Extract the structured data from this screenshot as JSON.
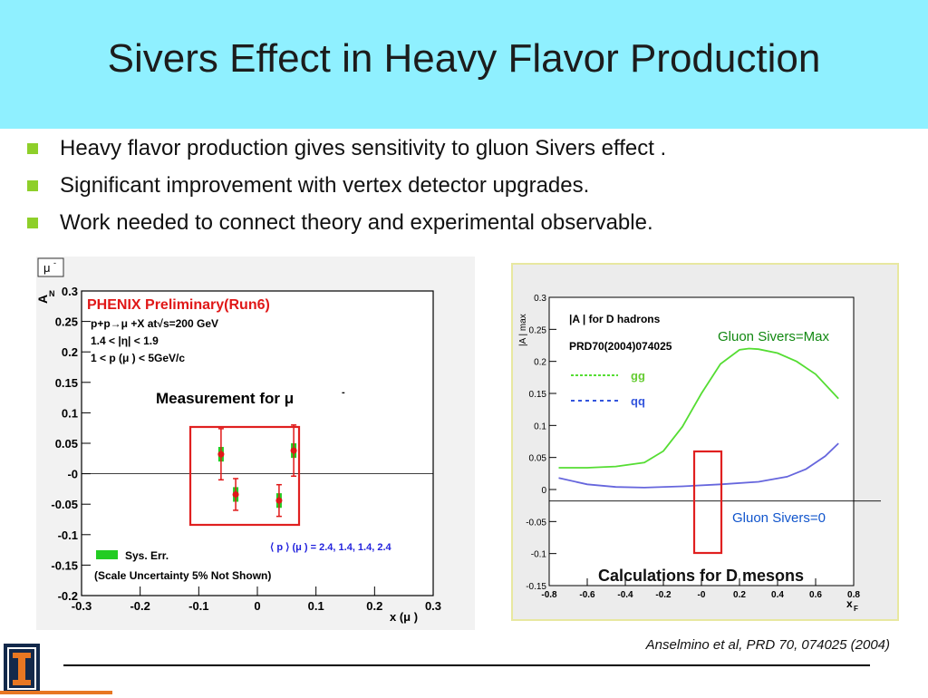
{
  "slide": {
    "title": "Sivers Effect in Heavy Flavor Production",
    "bullets": [
      "Heavy flavor production gives sensitivity to gluon Sivers effect .",
      "Significant improvement with vertex detector upgrades.",
      " Work needed to connect theory and experimental observable."
    ],
    "citation": "Anselmino et al, PRD 70, 074025 (2004)",
    "logo_text": "ILLINOIS",
    "colors": {
      "header": "#8ff0ff",
      "bullet": "#8ecf2a",
      "highlight_box": "#e02020"
    }
  },
  "chart_data": [
    {
      "type": "scatter",
      "panel_label": "μ",
      "panel_label_sup": "-",
      "title": "PHENIX Preliminary(Run6)",
      "info": [
        "p+p→μ +X at√s=200 GeV",
        "1.4 < |η| < 1.9",
        "1 < p (μ ) < 5GeV/c"
      ],
      "xlabel": "x (μ )",
      "ylabel": "A",
      "ylabel_sub": "N",
      "xlim": [
        -0.3,
        0.3
      ],
      "ylim": [
        -0.2,
        0.3
      ],
      "x_ticks": [
        "-0.3",
        "-0.2",
        "-0.1",
        "0",
        "0.1",
        "0.2",
        "0.3"
      ],
      "y_ticks": [
        "0.3",
        "0.25",
        "0.2",
        "0.15",
        "0.1",
        "0.05",
        "-0",
        "-0.05",
        "-0.1",
        "-0.15",
        "-0.2"
      ],
      "series": [
        {
          "x": [
            -0.062,
            -0.037,
            0.037,
            0.062
          ],
          "y": [
            0.032,
            -0.034,
            -0.044,
            0.038
          ],
          "yerr": [
            0.042,
            0.026,
            0.026,
            0.042
          ],
          "syserr": [
            0.012,
            0.012,
            0.012,
            0.012
          ],
          "color": "#e01818",
          "sys_color": "#22cc22"
        }
      ],
      "legend_syserr": "Sys. Err.",
      "scale_note": "(Scale Uncertainty 5% Not Shown)",
      "pt_note": "⟨ p ⟩ (μ ) = 2.4, 1.4, 1.4, 2.4",
      "annotation": "Measurement for μ",
      "annotation_sup": "-"
    },
    {
      "type": "line",
      "ylabel": "|A | max",
      "xlabel": "x",
      "xlabel_sub": "F",
      "xlim": [
        -0.8,
        0.8
      ],
      "ylim": [
        -0.15,
        0.3
      ],
      "x_ticks": [
        "-0.8",
        "-0.6",
        "-0.4",
        "-0.2",
        "-0",
        "0.2",
        "0.4",
        "0.6",
        "0.8"
      ],
      "y_ticks": [
        "0.3",
        "0.25",
        "0.2",
        "0.15",
        "0.1",
        "0.05",
        "0",
        "-0.05",
        "-0.1",
        "-0.15"
      ],
      "inset_title": "|A | for D hadrons",
      "inset_ref": "PRD70(2004)074025",
      "series": [
        {
          "name": "gg",
          "color": "#55dd33",
          "x": [
            -0.75,
            -0.6,
            -0.45,
            -0.3,
            -0.2,
            -0.1,
            0.0,
            0.1,
            0.2,
            0.25,
            0.3,
            0.4,
            0.5,
            0.6,
            0.72
          ],
          "y": [
            0.034,
            0.034,
            0.036,
            0.042,
            0.06,
            0.098,
            0.15,
            0.196,
            0.218,
            0.22,
            0.219,
            0.213,
            0.2,
            0.18,
            0.142
          ]
        },
        {
          "name": "qq",
          "color": "#6666dd",
          "x": [
            -0.75,
            -0.6,
            -0.45,
            -0.3,
            -0.1,
            0.1,
            0.3,
            0.45,
            0.55,
            0.65,
            0.72
          ],
          "y": [
            0.018,
            0.008,
            0.004,
            0.003,
            0.005,
            0.008,
            0.012,
            0.02,
            0.032,
            0.052,
            0.072
          ]
        }
      ],
      "label_max": "Gluon Sivers=Max",
      "label_zero": "Gluon Sivers=0",
      "annotation": "Calculations for D mesons"
    }
  ]
}
